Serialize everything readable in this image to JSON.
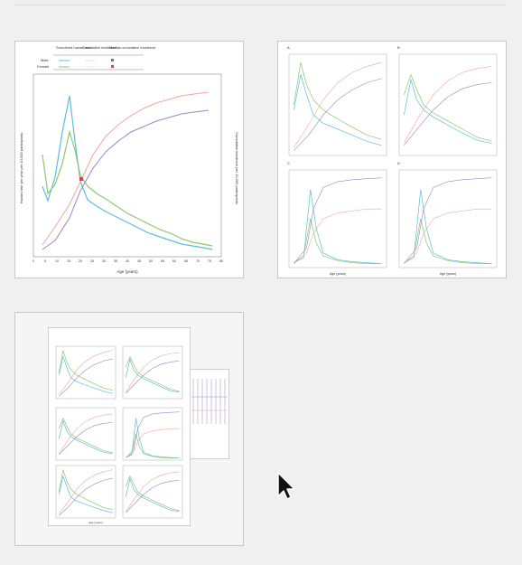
{
  "thumbnails": [
    {
      "name": "figure-1-thumbnail",
      "legend": {
        "col1": "Smoothed hazard rate",
        "col2": "Cumulative incidence",
        "col3": "Median cumulative incidence",
        "row1": "Male",
        "row2": "Female"
      },
      "x_axis_label": "Age (years)",
      "y_axis_left_label": "Hazard rate per year per 10,000 participants",
      "y_axis_right_label": "Cumulative incidence per 10,000 participants",
      "x_ticks": [
        "0",
        "5",
        "10",
        "15",
        "20",
        "25",
        "30",
        "35",
        "40",
        "45",
        "50",
        "55",
        "60",
        "65",
        "70",
        "75",
        "80"
      ]
    },
    {
      "name": "figure-2-thumbnail",
      "panels": [
        "A",
        "B",
        "C",
        "D"
      ],
      "x_axis_label": "Age (years)"
    },
    {
      "name": "figure-3-thumbnail",
      "x_axis_label": "Age (years)"
    }
  ],
  "colors": {
    "male_hazard": "#5bbfd8",
    "female_hazard": "#8cc86c",
    "male_cumulative": "#9b86c8",
    "female_cumulative": "#f0a898",
    "median_marker": "#e04040"
  },
  "cursor_icon": "arrow-pointer-icon"
}
